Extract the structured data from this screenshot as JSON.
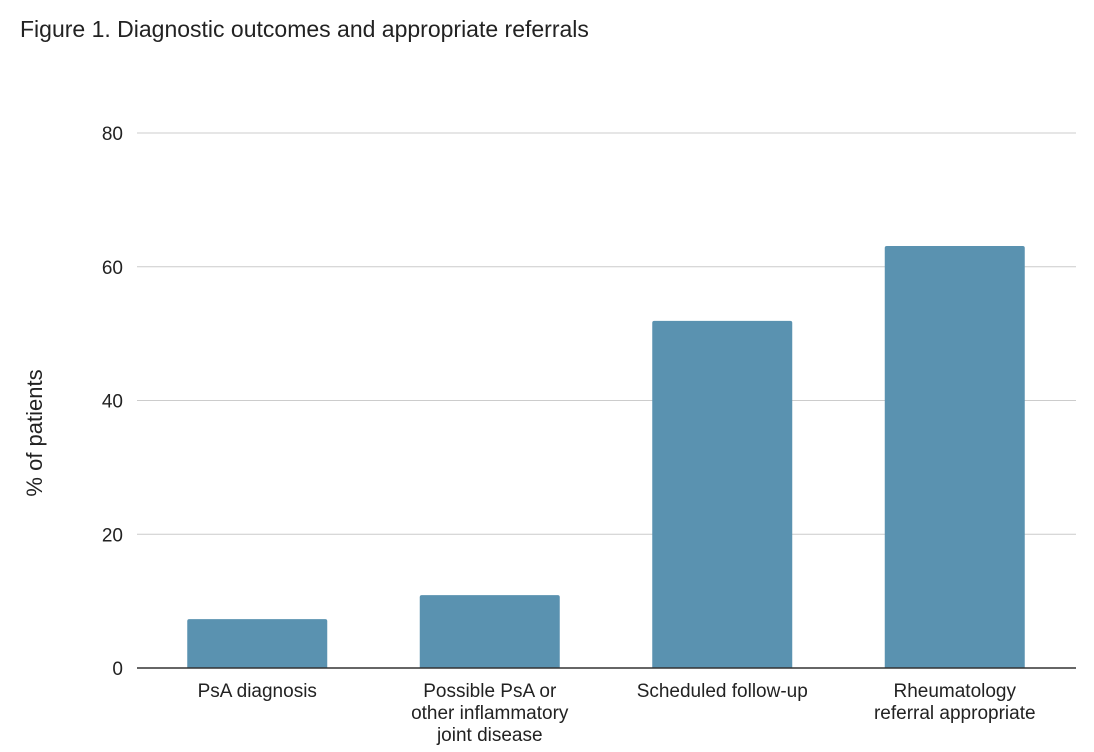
{
  "chart_data": {
    "type": "bar",
    "title": "Figure 1. Diagnostic outcomes and appropriate referrals",
    "xlabel": "",
    "ylabel": "% of patients",
    "categories": [
      [
        "PsA diagnosis"
      ],
      [
        "Possible PsA or",
        "other inflammatory",
        "joint disease"
      ],
      [
        "Scheduled follow-up"
      ],
      [
        "Rheumatology",
        "referral appropriate"
      ]
    ],
    "values": [
      7.3,
      10.9,
      51.9,
      63.1
    ],
    "ylim": [
      0,
      80
    ],
    "yticks": [
      0,
      20,
      40,
      60,
      80
    ],
    "grid": true,
    "legend": "none",
    "colors": {
      "bar": "#5a92b0",
      "grid": "#cccccc",
      "axis": "#333333"
    }
  }
}
